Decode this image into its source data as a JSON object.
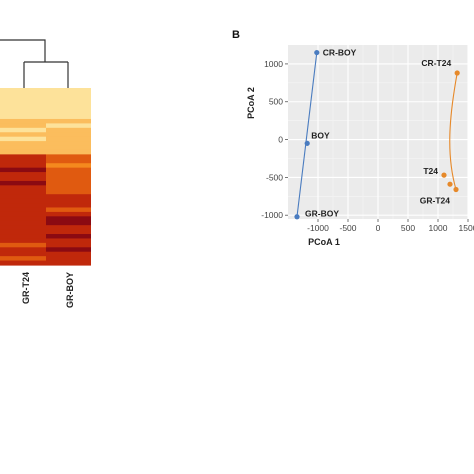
{
  "chart_data": [
    {
      "type": "heatmap",
      "columns": [
        "GR-T24",
        "GR-BOY"
      ],
      "colorscale": [
        "#fff3c4",
        "#fde29a",
        "#fbbd5d",
        "#f4891e",
        "#e05a10",
        "#c0280b",
        "#8b0a12"
      ],
      "rows_levels": [
        [
          0.15,
          0.12
        ],
        [
          0.18,
          0.1
        ],
        [
          0.12,
          0.2
        ],
        [
          0.2,
          0.15
        ],
        [
          0.1,
          0.1
        ],
        [
          0.22,
          0.18
        ],
        [
          0.14,
          0.22
        ],
        [
          0.3,
          0.25
        ],
        [
          0.25,
          0.2
        ],
        [
          0.18,
          0.3
        ],
        [
          0.28,
          0.35
        ],
        [
          0.2,
          0.25
        ],
        [
          0.35,
          0.3
        ],
        [
          0.25,
          0.38
        ],
        [
          0.4,
          0.3
        ],
        [
          0.85,
          0.6
        ],
        [
          0.9,
          0.65
        ],
        [
          0.82,
          0.58
        ],
        [
          0.95,
          0.62
        ],
        [
          0.88,
          0.7
        ],
        [
          0.8,
          0.66
        ],
        [
          0.92,
          0.6
        ],
        [
          0.86,
          0.72
        ],
        [
          0.78,
          0.68
        ],
        [
          0.9,
          0.75
        ],
        [
          0.84,
          0.8
        ],
        [
          0.88,
          0.78
        ],
        [
          0.76,
          0.7
        ],
        [
          0.82,
          0.85
        ],
        [
          0.9,
          0.92
        ],
        [
          0.86,
          0.95
        ],
        [
          0.8,
          0.9
        ],
        [
          0.75,
          0.88
        ],
        [
          0.82,
          0.95
        ],
        [
          0.78,
          0.9
        ],
        [
          0.72,
          0.85
        ],
        [
          0.8,
          0.92
        ],
        [
          0.85,
          0.88
        ],
        [
          0.7,
          0.82
        ],
        [
          0.78,
          0.9
        ]
      ]
    },
    {
      "type": "scatter",
      "panel_label": "B",
      "xlabel": "PCoA 1",
      "ylabel": "PCoA 2",
      "xlim": [
        -1500,
        1500
      ],
      "ylim": [
        -1050,
        1250
      ],
      "x_ticks": [
        -1000,
        -500,
        0,
        500,
        1000,
        1500
      ],
      "y_ticks": [
        1000,
        500,
        0,
        -500,
        -1000
      ],
      "grid": true,
      "background": "#ebebeb",
      "series": [
        {
          "color": "#4a7cc0",
          "points": [
            {
              "x": -1020,
              "y": 1150,
              "label": "CR-BOY"
            },
            {
              "x": -1180,
              "y": -50,
              "label": "BOY"
            },
            {
              "x": -1350,
              "y": -1020,
              "label": "GR-BOY"
            }
          ]
        },
        {
          "color": "#e6892a",
          "points": [
            {
              "x": 1320,
              "y": 880,
              "label": "CR-T24"
            },
            {
              "x": 1100,
              "y": -470,
              "label": "T24"
            },
            {
              "x": 1200,
              "y": -590,
              "label": ""
            },
            {
              "x": 1300,
              "y": -660,
              "label": "GR-T24"
            }
          ]
        }
      ]
    }
  ]
}
